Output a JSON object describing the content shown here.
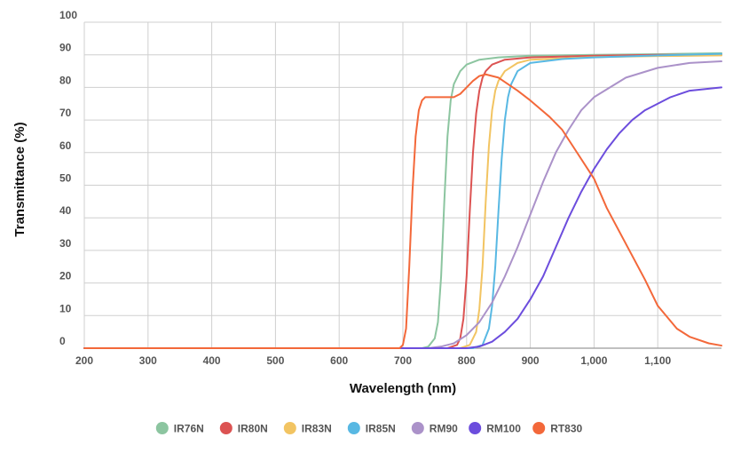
{
  "chart_data": {
    "type": "line",
    "title": "",
    "xlabel": "Wavelength (nm)",
    "ylabel": "Transmittance (%)",
    "xlim": [
      200,
      1200
    ],
    "ylim": [
      0,
      100
    ],
    "x_ticks": [
      {
        "value": 200,
        "label": "200"
      },
      {
        "value": 300,
        "label": "300"
      },
      {
        "value": 400,
        "label": "400"
      },
      {
        "value": 500,
        "label": "500"
      },
      {
        "value": 600,
        "label": "600"
      },
      {
        "value": 700,
        "label": "700"
      },
      {
        "value": 800,
        "label": "800"
      },
      {
        "value": 900,
        "label": "900"
      },
      {
        "value": 1000,
        "label": "1,000"
      },
      {
        "value": 1100,
        "label": "1,100"
      }
    ],
    "y_ticks": [
      {
        "value": 0,
        "label": "0"
      },
      {
        "value": 10,
        "label": "10"
      },
      {
        "value": 20,
        "label": "20"
      },
      {
        "value": 30,
        "label": "30"
      },
      {
        "value": 40,
        "label": "40"
      },
      {
        "value": 50,
        "label": "50"
      },
      {
        "value": 60,
        "label": "60"
      },
      {
        "value": 70,
        "label": "70"
      },
      {
        "value": 80,
        "label": "80"
      },
      {
        "value": 90,
        "label": "90"
      },
      {
        "value": 100,
        "label": "100"
      }
    ],
    "grid": true,
    "legend_position": "bottom",
    "series": [
      {
        "name": "IR76N",
        "color": "#8cc5a0",
        "x": [
          200,
          700,
          730,
          740,
          750,
          755,
          760,
          765,
          770,
          775,
          780,
          790,
          800,
          820,
          850,
          900,
          1000,
          1100,
          1200
        ],
        "y": [
          0,
          0,
          0,
          0.5,
          3,
          8,
          22,
          45,
          65,
          76,
          81,
          85,
          87,
          88.5,
          89.2,
          89.7,
          90,
          90.2,
          90.5
        ]
      },
      {
        "name": "IR80N",
        "color": "#dc5352",
        "x": [
          200,
          770,
          785,
          790,
          795,
          800,
          805,
          810,
          815,
          820,
          825,
          830,
          840,
          860,
          900,
          1000,
          1100,
          1200
        ],
        "y": [
          0,
          0,
          1,
          3,
          9,
          22,
          42,
          60,
          72,
          79,
          83,
          85,
          87,
          88.5,
          89.2,
          89.7,
          90,
          90
        ]
      },
      {
        "name": "IR83N",
        "color": "#f2c462",
        "x": [
          200,
          790,
          805,
          815,
          820,
          825,
          830,
          835,
          840,
          845,
          850,
          860,
          880,
          900,
          1000,
          1100,
          1200
        ],
        "y": [
          0,
          0,
          1,
          5,
          12,
          25,
          45,
          62,
          73,
          79,
          82,
          85,
          87.5,
          88.5,
          89.3,
          89.6,
          89.8
        ]
      },
      {
        "name": "IR85N",
        "color": "#58b8e3",
        "x": [
          200,
          810,
          825,
          835,
          840,
          845,
          850,
          855,
          860,
          865,
          870,
          880,
          900,
          950,
          1000,
          1100,
          1200
        ],
        "y": [
          0,
          0,
          1,
          6,
          13,
          25,
          42,
          58,
          70,
          77,
          81,
          85,
          87.5,
          88.7,
          89.2,
          89.8,
          90.3
        ]
      },
      {
        "name": "RM90",
        "color": "#ab92c9",
        "x": [
          200,
          740,
          760,
          780,
          800,
          820,
          840,
          860,
          880,
          900,
          920,
          940,
          960,
          980,
          1000,
          1050,
          1100,
          1150,
          1200
        ],
        "y": [
          0,
          0,
          0.5,
          1.5,
          4,
          8,
          14,
          22,
          31,
          41,
          51,
          60,
          67,
          73,
          77,
          83,
          86,
          87.5,
          88
        ]
      },
      {
        "name": "RM100",
        "color": "#6c4ddd",
        "x": [
          200,
          800,
          820,
          840,
          860,
          880,
          900,
          920,
          940,
          960,
          980,
          1000,
          1020,
          1040,
          1060,
          1080,
          1100,
          1120,
          1150,
          1200
        ],
        "y": [
          0,
          0,
          0.5,
          2,
          5,
          9,
          15,
          22,
          31,
          40,
          48,
          55,
          61,
          66,
          70,
          73,
          75,
          77,
          79,
          80
        ]
      },
      {
        "name": "RT830",
        "color": "#f3683a",
        "x": [
          200,
          695,
          700,
          705,
          710,
          715,
          720,
          725,
          730,
          735,
          740,
          750,
          760,
          780,
          790,
          800,
          810,
          820,
          830,
          850,
          880,
          900,
          930,
          950,
          970,
          990,
          1000,
          1020,
          1050,
          1080,
          1100,
          1130,
          1150,
          1180,
          1200
        ],
        "y": [
          0,
          0,
          1,
          6,
          25,
          48,
          65,
          73,
          76,
          77,
          77,
          77,
          77,
          77,
          78,
          80,
          82,
          83.5,
          84,
          83,
          79,
          76,
          71,
          67,
          61,
          55,
          52,
          43,
          32,
          21,
          13,
          6,
          3.5,
          1.5,
          0.8
        ]
      }
    ]
  }
}
